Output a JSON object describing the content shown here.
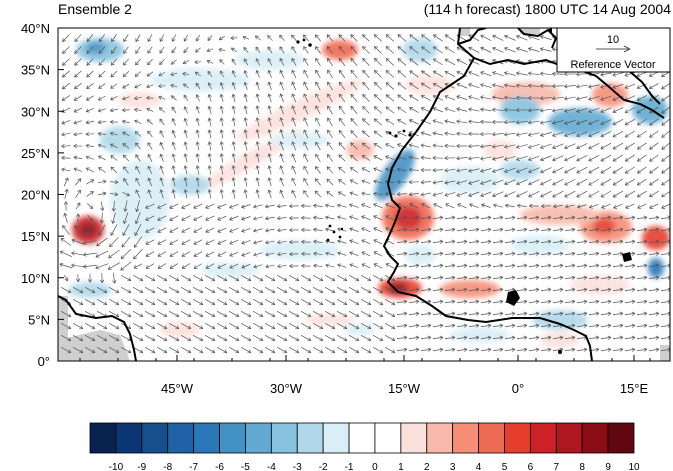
{
  "header": {
    "left_title": "Ensemble 2",
    "right_title": "(114 h forecast) 1800 UTC 14 Aug 2004"
  },
  "map": {
    "region": "North Atlantic / West Africa",
    "lat_labels": [
      "40°N",
      "35°N",
      "30°N",
      "25°N",
      "20°N",
      "15°N",
      "10°N",
      "5°N",
      "0°"
    ],
    "lon_labels": [
      "45°W",
      "30°W",
      "15°W",
      "0°",
      "15°E"
    ],
    "reference_vector": {
      "value": "10",
      "label": "Reference Vector"
    }
  },
  "colorbar": {
    "labels": [
      "-10",
      "-9",
      "-8",
      "-7",
      "-6",
      "-5",
      "-4",
      "-3",
      "-2",
      "-1",
      "0",
      "1",
      "2",
      "3",
      "4",
      "5",
      "6",
      "7",
      "8",
      "9",
      "10"
    ],
    "colors": [
      "#08234f",
      "#0b3573",
      "#164e8e",
      "#1f63a6",
      "#2b76b6",
      "#4491c4",
      "#62aad1",
      "#87c2de",
      "#b1d8ea",
      "#d9eef7",
      "#ffffff",
      "#ffffff",
      "#fce0dc",
      "#f8b9ab",
      "#f58f78",
      "#ef6a52",
      "#e53d2e",
      "#cc2127",
      "#b0161f",
      "#8a0d16",
      "#600710"
    ]
  },
  "colors": {
    "land": "#cfcfcf",
    "coast": "#000000",
    "vector": "#555555"
  }
}
